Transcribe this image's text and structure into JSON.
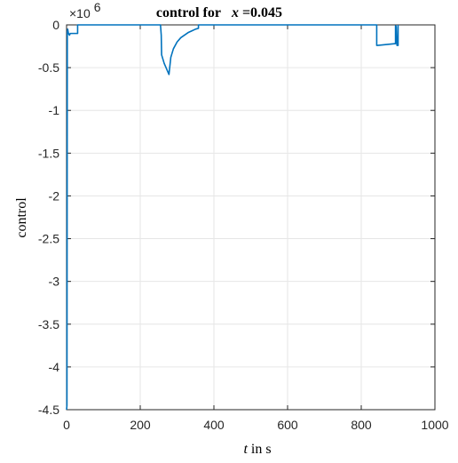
{
  "chart_data": {
    "type": "line",
    "title": "control for",
    "title_var": "x",
    "title_value": "=0.045",
    "xlabel_var": "t",
    "xlabel_rest": " in s",
    "ylabel": "control",
    "y_exponent_prefix": "×10",
    "y_exponent_power": "6",
    "xlim": [
      0,
      1000
    ],
    "ylim": [
      -4.5,
      0
    ],
    "xticks": [
      0,
      200,
      400,
      600,
      800,
      1000
    ],
    "yticks": [
      0,
      -0.5,
      -1,
      -1.5,
      -2,
      -2.5,
      -3,
      -3.5,
      -4,
      -4.5
    ],
    "xtick_labels": [
      "0",
      "200",
      "400",
      "600",
      "800",
      "1000"
    ],
    "ytick_labels": [
      "0",
      "-0.5",
      "-1",
      "-1.5",
      "-2",
      "-2.5",
      "-3",
      "-3.5",
      "-4",
      "-4.5"
    ],
    "grid": true,
    "line_color": "#0072bd",
    "series": [
      {
        "x": [
          0,
          1,
          2,
          3,
          5,
          8,
          10,
          10,
          30,
          30,
          255,
          257,
          258,
          265,
          270,
          278,
          283,
          290,
          300,
          310,
          320,
          330,
          340,
          350,
          358,
          358,
          360,
          370,
          835,
          842,
          842,
          845,
          890,
          893,
          893,
          895,
          897,
          900,
          900
        ],
        "y": [
          -4.5,
          -4.45,
          -0.08,
          -0.05,
          -0.1,
          -0.12,
          -0.1,
          -0.1,
          -0.1,
          0,
          0,
          -0.12,
          -0.35,
          -0.45,
          -0.5,
          -0.58,
          -0.38,
          -0.28,
          -0.2,
          -0.15,
          -0.12,
          -0.09,
          -0.07,
          -0.05,
          -0.04,
          0,
          0,
          0,
          0,
          0,
          -0.24,
          -0.24,
          -0.22,
          -0.22,
          -0.01,
          -0.02,
          -0.24,
          -0.24,
          0
        ]
      }
    ]
  }
}
